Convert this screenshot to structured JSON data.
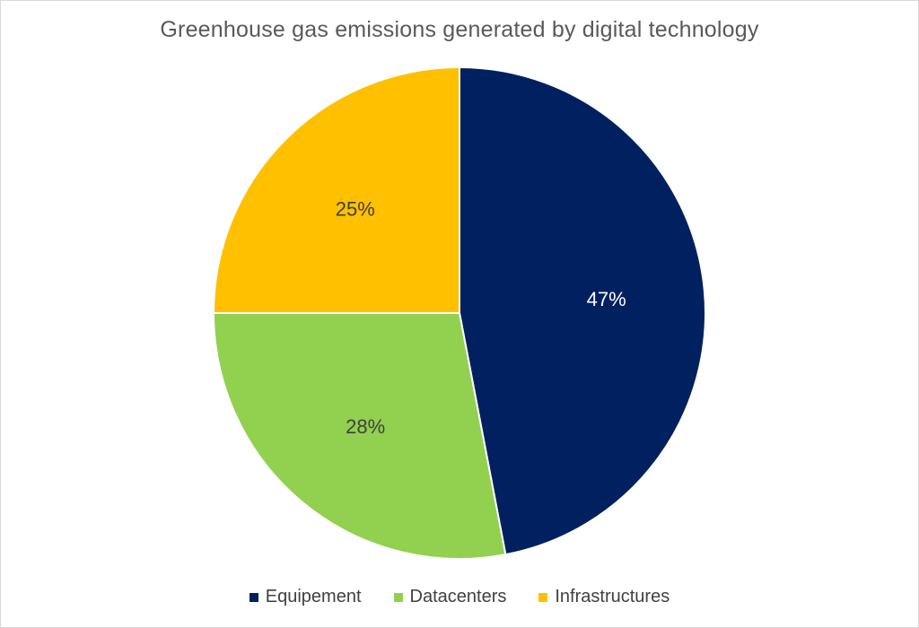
{
  "chart_data": {
    "type": "pie",
    "title": "Greenhouse gas emissions generated by digital technology",
    "slices": [
      {
        "name": "Equipement",
        "value": 47,
        "label": "47%",
        "color": "#002060",
        "label_color": "#ffffff"
      },
      {
        "name": "Datacenters",
        "value": 28,
        "label": "28%",
        "color": "#92d050",
        "label_color": "#404040"
      },
      {
        "name": "Infrastructures",
        "value": 25,
        "label": "25%",
        "color": "#ffc000",
        "label_color": "#404040"
      }
    ],
    "legend_position": "bottom",
    "start_angle": "top, clockwise"
  }
}
